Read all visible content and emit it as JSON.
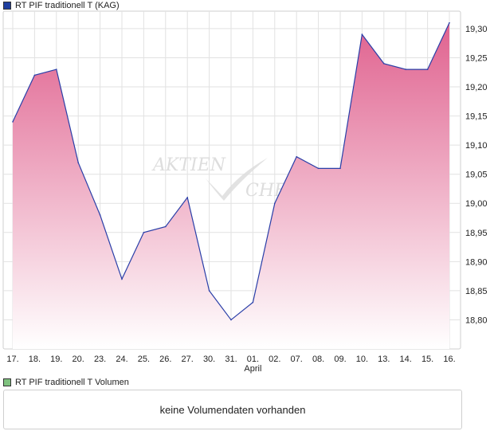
{
  "legend": {
    "price_label": "RT PIF traditionell T (KAG)",
    "volume_label": "RT PIF traditionell T Volumen"
  },
  "volume_panel": {
    "message": "keine Volumendaten vorhanden"
  },
  "watermark": {
    "line1": "AKTIEN",
    "line2": "CHECK"
  },
  "colors": {
    "line": "#2a3fa8",
    "fill_top": "#e0628f",
    "fill_bottom": "#ffffff",
    "grid": "#e2e2e2",
    "legend_price": "#1f3f9f",
    "legend_volume": "#7fc27f"
  },
  "chart_data": {
    "type": "area",
    "x": [
      "17.",
      "18.",
      "19.",
      "20.",
      "23.",
      "24.",
      "25.",
      "26.",
      "27.",
      "30.",
      "31.",
      "01.",
      "02.",
      "07.",
      "08.",
      "09.",
      "10.",
      "13.",
      "14.",
      "15.",
      "16."
    ],
    "month_labels": [
      {
        "at": "01.",
        "label": "April"
      }
    ],
    "series": [
      {
        "name": "RT PIF traditionell T (KAG)",
        "values": [
          19.14,
          19.22,
          19.23,
          19.07,
          18.98,
          18.87,
          18.95,
          18.96,
          19.01,
          18.85,
          18.8,
          18.83,
          19.0,
          19.08,
          19.06,
          19.06,
          19.29,
          19.24,
          19.23,
          19.23,
          19.31
        ]
      }
    ],
    "y_ticks": [
      "18,80",
      "18,85",
      "18,90",
      "18,95",
      "19,00",
      "19,05",
      "19,10",
      "19,15",
      "19,20",
      "19,25",
      "19,30"
    ],
    "ylim": [
      18.75,
      19.33
    ],
    "grid": true,
    "y_axis_position": "right"
  }
}
